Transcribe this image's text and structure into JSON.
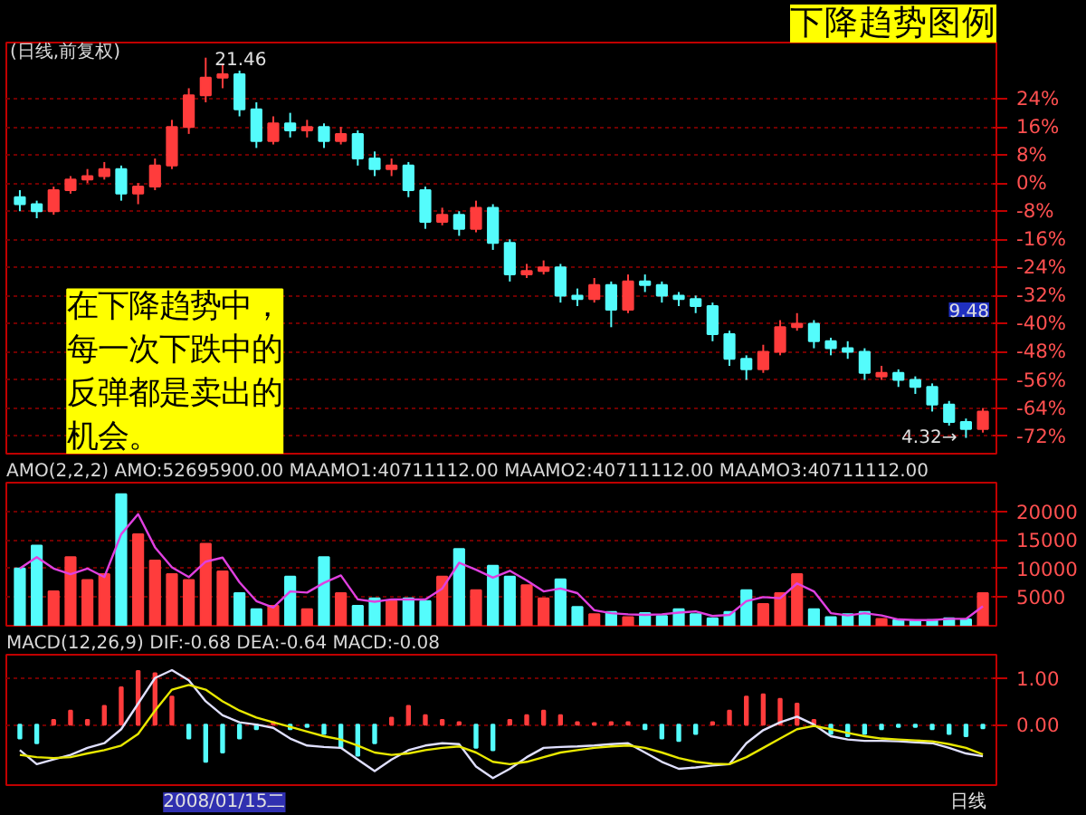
{
  "chart_data": [
    {
      "type": "candlestick",
      "title": "下降趋势图例",
      "subtitle": "(日线,前复权)",
      "categories": [
        null,
        null,
        null,
        null,
        null,
        null,
        null,
        null,
        null,
        null,
        null,
        null,
        null,
        null,
        null,
        null,
        null,
        null,
        null,
        null,
        null,
        null,
        null,
        null,
        null,
        null,
        null,
        null,
        null,
        null,
        null,
        null,
        null,
        null,
        null,
        null,
        null,
        null,
        null,
        null,
        null,
        null,
        null,
        null,
        null,
        null,
        null,
        null,
        null,
        null,
        null,
        null,
        null,
        null,
        null,
        null,
        null,
        null
      ],
      "ohlc": [
        [
          -4,
          -2,
          -8,
          -6
        ],
        [
          -6,
          -5,
          -10,
          -8
        ],
        [
          -8,
          -1,
          -9,
          -2
        ],
        [
          -2,
          2,
          -3,
          1
        ],
        [
          1,
          4,
          0,
          2
        ],
        [
          2,
          6,
          1,
          4
        ],
        [
          4,
          5,
          -5,
          -3
        ],
        [
          -3,
          0,
          -6,
          -1
        ],
        [
          -1,
          7,
          -2,
          5
        ],
        [
          5,
          18,
          4,
          16
        ],
        [
          16,
          27,
          14,
          25
        ],
        [
          25,
          35.7,
          23,
          30
        ],
        [
          30,
          34,
          27,
          31
        ],
        [
          31,
          32,
          19,
          21
        ],
        [
          21,
          23,
          10,
          12
        ],
        [
          12,
          19,
          11,
          17
        ],
        [
          17,
          20,
          13,
          15
        ],
        [
          15,
          18,
          13,
          16
        ],
        [
          16,
          17,
          10,
          12
        ],
        [
          12,
          16,
          11,
          14
        ],
        [
          14,
          15,
          5,
          7
        ],
        [
          7,
          9,
          2,
          4
        ],
        [
          4,
          7,
          2,
          5
        ],
        [
          5,
          6,
          -4,
          -2
        ],
        [
          -2,
          -1,
          -13,
          -11
        ],
        [
          -11,
          -7,
          -12,
          -9
        ],
        [
          -9,
          -8,
          -15,
          -13
        ],
        [
          -13,
          -5,
          -14,
          -7
        ],
        [
          -7,
          -6,
          -19,
          -17
        ],
        [
          -17,
          -16,
          -28,
          -26
        ],
        [
          -26,
          -23,
          -27,
          -25
        ],
        [
          -25,
          -22,
          -26,
          -24
        ],
        [
          -24,
          -23,
          -34,
          -32
        ],
        [
          -32,
          -30,
          -35,
          -33
        ],
        [
          -33,
          -27,
          -34,
          -29
        ],
        [
          -29,
          -28,
          -41,
          -36
        ],
        [
          -36,
          -26,
          -37,
          -28
        ],
        [
          -28,
          -26,
          -31,
          -29
        ],
        [
          -29,
          -28,
          -34,
          -32
        ],
        [
          -32,
          -31,
          -35,
          -33
        ],
        [
          -33,
          -32,
          -37,
          -35
        ],
        [
          -35,
          -34,
          -45,
          -43
        ],
        [
          -43,
          -42,
          -52,
          -50
        ],
        [
          -50,
          -49,
          -56,
          -53
        ],
        [
          -53,
          -46,
          -54,
          -48
        ],
        [
          -48,
          -39,
          -49,
          -41
        ],
        [
          -41,
          -37,
          -42,
          -40
        ],
        [
          -40,
          -39,
          -47,
          -45
        ],
        [
          -45,
          -44,
          -49,
          -47
        ],
        [
          -47,
          -45,
          -50,
          -48
        ],
        [
          -48,
          -47,
          -56,
          -54
        ],
        [
          -55,
          -52,
          -56,
          -54
        ],
        [
          -54,
          -53,
          -58,
          -56
        ],
        [
          -56,
          -55,
          -60,
          -58
        ],
        [
          -58,
          -57,
          -65,
          -63
        ],
        [
          -63,
          -62,
          -69,
          -68
        ],
        [
          -68,
          -67,
          -72.5,
          -70
        ],
        [
          -70,
          -64,
          -71,
          -65
        ]
      ],
      "colors": [
        "#54fcfc",
        "#54fcfc",
        "#ff3c3c",
        "#ff3c3c",
        "#ff3c3c",
        "#ff3c3c",
        "#54fcfc",
        "#ff3c3c",
        "#ff3c3c",
        "#ff3c3c",
        "#ff3c3c",
        "#ff3c3c",
        "#ff3c3c",
        "#54fcfc",
        "#54fcfc",
        "#ff3c3c",
        "#54fcfc",
        "#ff3c3c",
        "#54fcfc",
        "#ff3c3c",
        "#54fcfc",
        "#54fcfc",
        "#ff3c3c",
        "#54fcfc",
        "#54fcfc",
        "#ff3c3c",
        "#54fcfc",
        "#ff3c3c",
        "#54fcfc",
        "#54fcfc",
        "#ff3c3c",
        "#ff3c3c",
        "#54fcfc",
        "#54fcfc",
        "#ff3c3c",
        "#54fcfc",
        "#ff3c3c",
        "#54fcfc",
        "#54fcfc",
        "#54fcfc",
        "#54fcfc",
        "#54fcfc",
        "#54fcfc",
        "#54fcfc",
        "#ff3c3c",
        "#ff3c3c",
        "#ff3c3c",
        "#54fcfc",
        "#54fcfc",
        "#54fcfc",
        "#54fcfc",
        "#ff3c3c",
        "#54fcfc",
        "#54fcfc",
        "#54fcfc",
        "#54fcfc",
        "#54fcfc",
        "#ff3c3c"
      ],
      "ylim": [
        -77,
        40
      ],
      "yticks": [
        {
          "value": 24,
          "label": "24%"
        },
        {
          "value": 16,
          "label": "16%"
        },
        {
          "value": 8,
          "label": "8%"
        },
        {
          "value": 0,
          "label": "0%"
        },
        {
          "value": -8,
          "label": "-8%"
        },
        {
          "value": -16,
          "label": "-16%"
        },
        {
          "value": -24,
          "label": "-24%"
        },
        {
          "value": -32,
          "label": "-32%"
        },
        {
          "value": -40,
          "label": "-40%"
        },
        {
          "value": -48,
          "label": "-48%"
        },
        {
          "value": -56,
          "label": "-56%"
        },
        {
          "value": -64,
          "label": "-64%"
        },
        {
          "value": -72,
          "label": "-72%"
        }
      ],
      "grid": "y",
      "annotations": [
        "21.46",
        "4.32→",
        "在下降趋势中，每一次下跌中的反弹都是卖出的机会。",
        "9.48"
      ]
    },
    {
      "type": "bar",
      "title": "AMO(2,2,2) AMO:52695900.00 MAAMO1:40711112.00 MAAMO2:40711112.00 MAAMO3:40711112.00",
      "categories": [
        null,
        null,
        null,
        null,
        null,
        null,
        null,
        null,
        null,
        null,
        null,
        null,
        null,
        null,
        null,
        null,
        null,
        null,
        null,
        null,
        null,
        null,
        null,
        null,
        null,
        null,
        null,
        null,
        null,
        null,
        null,
        null,
        null,
        null,
        null,
        null,
        null,
        null,
        null,
        null,
        null,
        null,
        null,
        null,
        null,
        null,
        null,
        null,
        null,
        null,
        null,
        null,
        null,
        null,
        null,
        null,
        null,
        null
      ],
      "series": [
        {
          "type": "bar",
          "colors": [
            "#54fcfc",
            "#54fcfc",
            "#ff3c3c",
            "#ff3c3c",
            "#ff3c3c",
            "#ff3c3c",
            "#54fcfc",
            "#ff3c3c",
            "#ff3c3c",
            "#ff3c3c",
            "#ff3c3c",
            "#ff3c3c",
            "#ff3c3c",
            "#54fcfc",
            "#54fcfc",
            "#ff3c3c",
            "#54fcfc",
            "#ff3c3c",
            "#54fcfc",
            "#ff3c3c",
            "#54fcfc",
            "#54fcfc",
            "#ff3c3c",
            "#54fcfc",
            "#54fcfc",
            "#ff3c3c",
            "#54fcfc",
            "#ff3c3c",
            "#54fcfc",
            "#54fcfc",
            "#ff3c3c",
            "#ff3c3c",
            "#54fcfc",
            "#54fcfc",
            "#ff3c3c",
            "#54fcfc",
            "#ff3c3c",
            "#54fcfc",
            "#54fcfc",
            "#54fcfc",
            "#54fcfc",
            "#54fcfc",
            "#54fcfc",
            "#54fcfc",
            "#ff3c3c",
            "#ff3c3c",
            "#ff3c3c",
            "#54fcfc",
            "#54fcfc",
            "#54fcfc",
            "#54fcfc",
            "#ff3c3c",
            "#54fcfc",
            "#54fcfc",
            "#54fcfc",
            "#54fcfc",
            "#54fcfc",
            "#ff3c3c"
          ],
          "values": [
            10000,
            14000,
            6000,
            12000,
            8000,
            9000,
            23000,
            16000,
            11400,
            9000,
            8000,
            14300,
            9500,
            5700,
            2900,
            3500,
            8600,
            2900,
            12000,
            5700,
            3500,
            4800,
            4300,
            4800,
            4300,
            8600,
            13400,
            6200,
            10500,
            8600,
            7100,
            4800,
            8100,
            3300,
            2000,
            2400,
            1500,
            2200,
            1700,
            2900,
            2000,
            1300,
            2400,
            6200,
            3800,
            5700,
            9000,
            2900,
            1500,
            2000,
            2400,
            1200,
            1000,
            900,
            1000,
            1300,
            1100,
            5700
          ]
        },
        {
          "type": "line",
          "color": "#e040e0",
          "values": [
            10000,
            12000,
            10000,
            9000,
            10000,
            8500,
            16000,
            19500,
            13700,
            10200,
            8500,
            11200,
            11900,
            7600,
            4300,
            3200,
            6000,
            5800,
            7500,
            8800,
            4600,
            4200,
            4600,
            4600,
            4600,
            6500,
            11000,
            9800,
            8400,
            9600,
            7900,
            6000,
            6500,
            5700,
            2700,
            2200,
            2000,
            1900,
            2000,
            2300,
            2500,
            1700,
            1900,
            4300,
            5000,
            4800,
            7400,
            6000,
            2200,
            1800,
            2200,
            1800,
            1100,
            1000,
            1000,
            1200,
            1200,
            3400
          ]
        }
      ],
      "ylim": [
        0,
        25000
      ],
      "yticks": [
        5000,
        10000,
        15000,
        20000
      ],
      "grid": "y"
    },
    {
      "type": "bar",
      "title": "MACD(12,26,9) DIF:-0.68 DEA:-0.64 MACD:-0.08",
      "categories": [
        null,
        null,
        null,
        null,
        null,
        null,
        null,
        null,
        null,
        null,
        null,
        null,
        null,
        null,
        null,
        null,
        null,
        null,
        null,
        null,
        null,
        null,
        null,
        null,
        null,
        null,
        null,
        null,
        null,
        null,
        null,
        null,
        null,
        null,
        null,
        null,
        null,
        null,
        null,
        null,
        null,
        null,
        null,
        null,
        null,
        null,
        null,
        null,
        null,
        null,
        null,
        null,
        null,
        null,
        null,
        null,
        null,
        null
      ],
      "series": [
        {
          "type": "bar",
          "colors": [
            "#54fcfc",
            "#54fcfc",
            "#ff3c3c",
            "#ff3c3c",
            "#ff3c3c",
            "#ff3c3c",
            "#ff3c3c",
            "#ff3c3c",
            "#ff3c3c",
            "#ff3c3c",
            "#54fcfc",
            "#54fcfc",
            "#54fcfc",
            "#54fcfc",
            "#54fcfc",
            "#ff3c3c",
            "#54fcfc",
            "#54fcfc",
            "#54fcfc",
            "#54fcfc",
            "#54fcfc",
            "#54fcfc",
            "#ff3c3c",
            "#ff3c3c",
            "#ff3c3c",
            "#ff3c3c",
            "#ff3c3c",
            "#54fcfc",
            "#54fcfc",
            "#ff3c3c",
            "#ff3c3c",
            "#ff3c3c",
            "#ff3c3c",
            "#ff3c3c",
            "#ff3c3c",
            "#ff3c3c",
            "#ff3c3c",
            "#54fcfc",
            "#54fcfc",
            "#54fcfc",
            "#54fcfc",
            "#ff3c3c",
            "#ff3c3c",
            "#ff3c3c",
            "#ff3c3c",
            "#ff3c3c",
            "#ff3c3c",
            "#ff3c3c",
            "#54fcfc",
            "#54fcfc",
            "#54fcfc",
            "#54fcfc",
            "#54fcfc",
            "#54fcfc",
            "#54fcfc",
            "#54fcfc",
            "#54fcfc",
            "#54fcfc"
          ],
          "values": [
            -0.3,
            -0.4,
            0.1,
            0.3,
            0.1,
            0.4,
            0.8,
            1.15,
            1.1,
            0.6,
            -0.3,
            -0.8,
            -0.6,
            -0.3,
            -0.1,
            0.05,
            -0.1,
            -0.05,
            -0.2,
            -0.5,
            -0.67,
            -0.4,
            0.15,
            0.4,
            0.2,
            0.1,
            0.05,
            -0.5,
            -0.55,
            0.1,
            0.2,
            0.3,
            0.2,
            0.05,
            0.03,
            0.05,
            0.05,
            -0.1,
            -0.3,
            -0.35,
            -0.2,
            0.05,
            0.3,
            0.6,
            0.65,
            0.55,
            0.45,
            0.1,
            -0.2,
            -0.25,
            -0.2,
            -0.1,
            -0.05,
            -0.05,
            -0.1,
            -0.2,
            -0.25,
            -0.08
          ]
        },
        {
          "type": "line",
          "color": "#e0e0ff",
          "values": [
            -0.55,
            -0.85,
            -0.75,
            -0.65,
            -0.5,
            -0.4,
            -0.1,
            0.45,
            1.0,
            1.17,
            0.95,
            0.5,
            0.2,
            0.05,
            0.0,
            -0.07,
            -0.3,
            -0.45,
            -0.48,
            -0.5,
            -0.75,
            -1.0,
            -0.75,
            -0.55,
            -0.45,
            -0.4,
            -0.42,
            -0.9,
            -1.15,
            -0.95,
            -0.7,
            -0.5,
            -0.48,
            -0.47,
            -0.45,
            -0.42,
            -0.4,
            -0.6,
            -0.8,
            -0.95,
            -0.92,
            -0.88,
            -0.85,
            -0.4,
            -0.12,
            0.05,
            0.17,
            0.0,
            -0.25,
            -0.32,
            -0.35,
            -0.35,
            -0.36,
            -0.38,
            -0.4,
            -0.5,
            -0.62,
            -0.68
          ]
        },
        {
          "type": "line",
          "color": "#e8e800",
          "values": [
            -0.65,
            -0.7,
            -0.72,
            -0.7,
            -0.62,
            -0.55,
            -0.45,
            -0.2,
            0.3,
            0.75,
            0.85,
            0.75,
            0.5,
            0.3,
            0.15,
            0.05,
            -0.05,
            -0.15,
            -0.25,
            -0.32,
            -0.45,
            -0.6,
            -0.65,
            -0.62,
            -0.55,
            -0.5,
            -0.47,
            -0.6,
            -0.8,
            -0.85,
            -0.8,
            -0.7,
            -0.6,
            -0.55,
            -0.5,
            -0.47,
            -0.45,
            -0.5,
            -0.6,
            -0.72,
            -0.8,
            -0.84,
            -0.85,
            -0.7,
            -0.5,
            -0.3,
            -0.1,
            -0.03,
            -0.1,
            -0.18,
            -0.25,
            -0.3,
            -0.32,
            -0.34,
            -0.36,
            -0.42,
            -0.5,
            -0.64
          ]
        }
      ],
      "ylim": [
        -1.3,
        1.5
      ],
      "yticks": [
        {
          "value": 1,
          "label": "1.00"
        },
        {
          "value": 0,
          "label": "0.00"
        }
      ],
      "grid": "y",
      "annotations": [
        "2008/01/15二",
        "日线"
      ]
    }
  ]
}
